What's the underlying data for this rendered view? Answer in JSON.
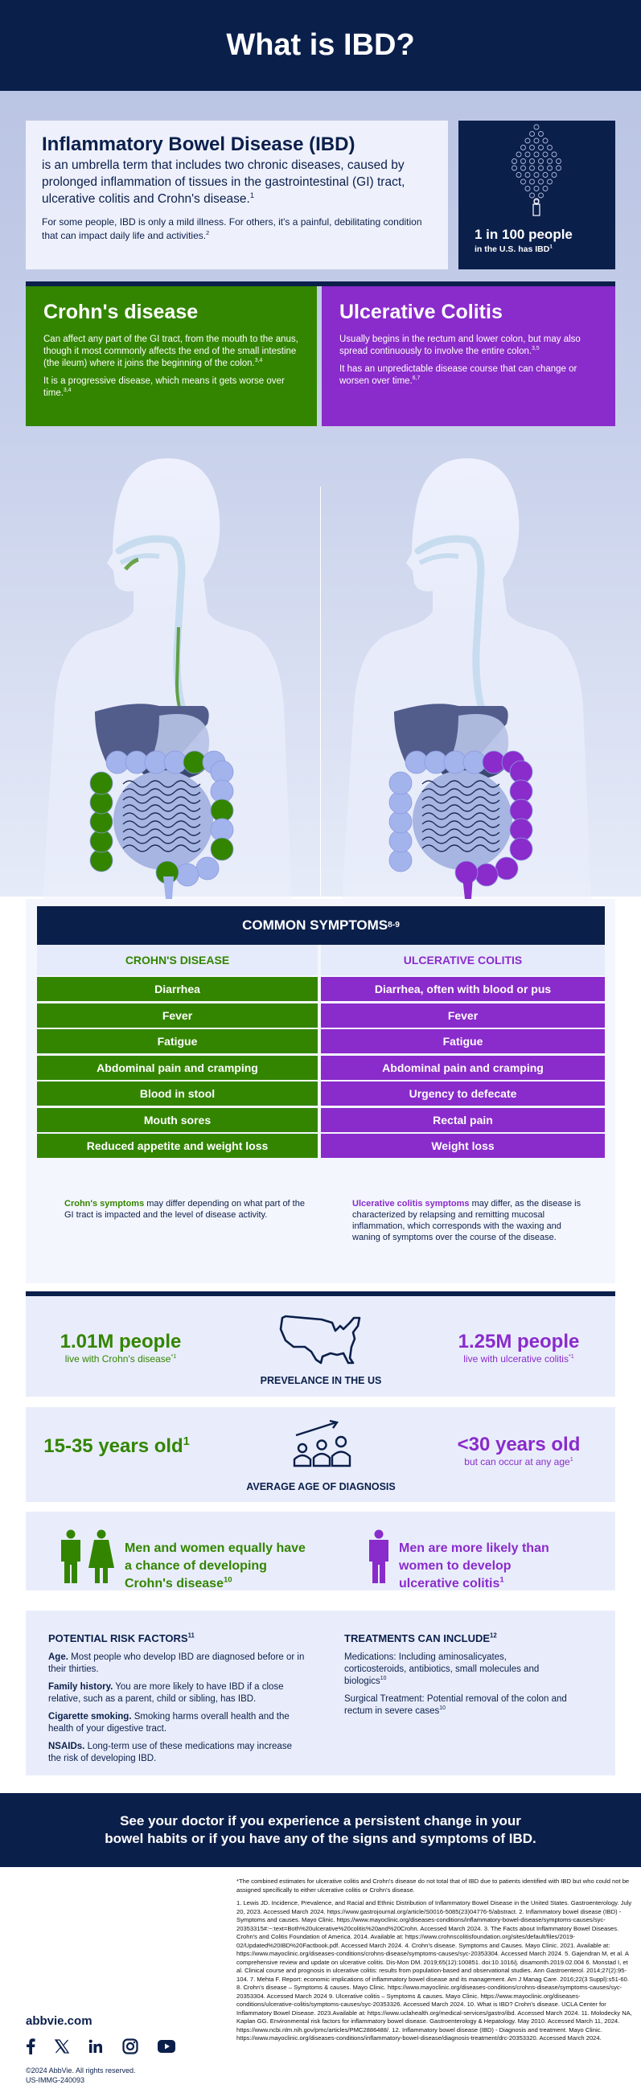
{
  "header": {
    "title": "What is IBD?"
  },
  "intro": {
    "title": "Inflammatory Bowel Disease (IBD)",
    "lead": "is an umbrella term that includes two chronic diseases, caused by prolonged inflammation of tissues in the gastrointestinal (GI) tract, ulcerative colitis and Crohn's disease.",
    "lead_ref": "1",
    "more": "For some people, IBD is only a mild illness. For others, it's a painful, debilitating condition that can impact daily life and activities.",
    "more_ref": "2"
  },
  "stat": {
    "big": "1 in 100 people",
    "small": "in the U.S. has IBD",
    "ref": "1"
  },
  "colors": {
    "navy": "#0b1f4b",
    "crohn_green": "#338500",
    "uc_purple": "#8a2bcb"
  },
  "crohn": {
    "title": "Crohn's disease",
    "p1": "Can affect any part of the GI tract, from the mouth to the anus, though it most commonly affects the end of the small intestine (the ileum) where it joins the beginning of the colon.",
    "p1_ref": "3,4",
    "p2": "It is a progressive disease, which means it gets worse over time.",
    "p2_ref": "3,4"
  },
  "uc": {
    "title": "Ulcerative Colitis",
    "p1": "Usually begins in the rectum and lower colon, but may also spread continuously to involve the entire colon.",
    "p1_ref": "3,5",
    "p2": "It has an unpredictable disease course that can change or worsen over time.",
    "p2_ref": "6,7"
  },
  "symptoms": {
    "title": "COMMON SYMPTOMS",
    "title_ref": "8-9",
    "crohn_header": "CROHN'S DISEASE",
    "uc_header": "ULCERATIVE COLITIS",
    "crohn": [
      "Diarrhea",
      "Fever",
      "Fatigue",
      "Abdominal pain and cramping",
      "Blood in stool",
      "Mouth sores",
      "Reduced appetite and weight loss"
    ],
    "uc": [
      "Diarrhea, often with blood or pus",
      "Fever",
      "Fatigue",
      "Abdominal pain and cramping",
      "Urgency to defecate",
      "Rectal pain",
      "Weight loss"
    ],
    "crohn_note_lead": "Crohn's symptoms",
    "crohn_note": " may differ depending on what part of the GI tract is impacted and the level of disease activity.",
    "uc_note_lead": "Ulcerative colitis symptoms",
    "uc_note": " may differ, as the disease is characterized by relapsing and remitting mucosal inflammation, which corresponds with the waxing and waning of symptoms over the course of the disease."
  },
  "prevalence": {
    "crohn_num": "1.01M people",
    "crohn_sub": "live with Crohn's disease",
    "crohn_ref": "*1",
    "caption": "PREVELANCE IN THE US",
    "uc_num": "1.25M people",
    "uc_sub": "live with ulcerative colitis",
    "uc_ref": "*1"
  },
  "age": {
    "crohn_num": "15-35 years old",
    "crohn_ref": "1",
    "caption": "AVERAGE AGE OF DIAGNOSIS",
    "uc_num": "<30 years old",
    "uc_sub": "but can occur at any age",
    "uc_ref": "1"
  },
  "gender": {
    "crohn": "Men and women equally have a chance of developing Crohn's disease",
    "crohn_ref": "10",
    "uc": "Men are more likely than women to develop ulcerative colitis",
    "uc_ref": "1"
  },
  "risk": {
    "title": "POTENTIAL RISK FACTORS",
    "title_ref": "11",
    "items": [
      {
        "label": "Age.",
        "text": " Most people who develop IBD are diagnosed before or in their thirties."
      },
      {
        "label": "Family history.",
        "text": " You are more likely to have IBD if a close relative, such as a parent, child or sibling, has IBD."
      },
      {
        "label": "Cigarette smoking.",
        "text": " Smoking harms overall health and the health of your digestive tract."
      },
      {
        "label": "NSAIDs.",
        "text": " Long-term use of these medications may increase the risk of developing IBD."
      }
    ]
  },
  "treatments": {
    "title": "TREATMENTS CAN INCLUDE",
    "title_ref": "12",
    "items": [
      {
        "label": "Medications:",
        "text": " Including aminosalicyates, corticosteroids, antibiotics, small molecules and biologics",
        "ref": "10"
      },
      {
        "label": "Surgical Treatment:",
        "text": " Potential removal of the colon and rectum in severe cases",
        "ref": "10"
      }
    ]
  },
  "cta": "See your doctor if you experience a persistent change in your bowel habits or if you have any of the signs and symptoms of IBD.",
  "footnote": "*The combined estimates for ulcerative colitis and Crohn's disease do not total that of IBD due to patients identified with IBD but who could not be assigned specifically to either ulcerative colitis or Crohn's disease.",
  "references": "1. Lewis JD. Incidence, Prevalence, and Racial and Ethnic Distribution of Inflammatory Bowel Disease in the United States. Gastroenterology. July 20, 2023. Accessed March 2024. https://www.gastrojournal.org/article/S0016-5085(23)04776-5/abstract. 2. Inflammatory bowel disease (IBD) - Symptoms and causes. Mayo Clinic. https://www.mayoclinic.org/diseases-conditions/inflammatory-bowel-disease/symptoms-causes/syc-20353315#:~:text=Both%20ulcerative%20colitis%20and%20Crohn. Accessed March 2024. 3. The Facts about Inflammatory Bowel Diseases. Crohn's and Colitis Foundation of America. 2014. Available at: https://www.crohnscolitisfoundation.org/sites/default/files/2019-02/Updated%20IBD%20Factbook.pdf. Accessed March 2024. 4. Crohn's disease. Symptoms and Causes. Mayo Clinic. 2021. Available at: https://www.mayoclinic.org/diseases-conditions/crohns-disease/symptoms-causes/syc-20353304. Accessed March 2024. 5. Gajendran M, et al. A comprehensive review and update on ulcerative colitis. Dis-Mon DM. 2019;65(12):100851. doi:10.1016/j. disamonth.2019.02.004 6. Monstad I, et al. Clinical course and prognosis in ulcerative colitis: results from population-based and observational studies. Ann Gastroenterol. 2014;27(2):95-104. 7. Mehta F. Report: economic implications of inflammatory bowel disease and its management. Am J Manag Care. 2016;22(3 Suppl):s51-60. 8. Crohn's disease – Symptoms & causes. Mayo Clinic. https://www.mayoclinic.org/diseases-conditions/crohns-disease/symptoms-causes/syc-20353304. Accessed March 2024 9. Ulcerative colitis – Symptoms & causes. Mayo Clinic. https://www.mayoclinic.org/diseases-conditions/ulcerative-colitis/symptoms-causes/syc-20353326. Accessed March 2024. 10. What is IBD? Crohn's disease. UCLA Center for Inflammatory Bowel Disease. 2023.Available at: https://www.uclahealth.org/medical-services/gastro/ibd. Accessed March 2024. 11. Molodecky NA, Kaplan GG. Environmental risk factors for inflammatory bowel disease. Gastroenterology & Hepatology. May 2010. Accessed March 11, 2024. https://www.ncbi.nlm.nih.gov/pmc/articles/PMC2886488/. 12. Inflammatory bowel disease (IBD) - Diagnosis and treatment. Mayo Clinic. https://www.mayoclinic.org/diseases-conditions/inflammatory-bowel-disease/diagnosis-treatment/drc-20353320. Accessed March 2024.",
  "footer": {
    "site": "abbvie.com",
    "social": [
      "facebook-icon",
      "x-icon",
      "linkedin-icon",
      "instagram-icon",
      "youtube-icon"
    ],
    "copyright": "©2024 AbbVie. All rights reserved.",
    "code": "US-IMMG-240093"
  }
}
